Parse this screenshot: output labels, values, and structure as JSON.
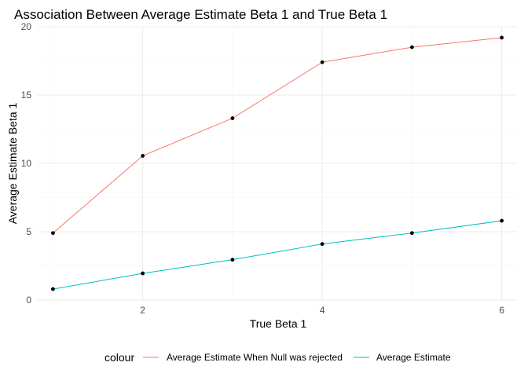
{
  "chart_data": {
    "type": "line",
    "title": "Association Between Average Estimate Beta 1 and True Beta 1",
    "xlabel": "True Beta 1",
    "ylabel": "Average Estimate Beta 1",
    "x": [
      1,
      2,
      3,
      4,
      5,
      6
    ],
    "xlim": [
      0.83,
      6.17
    ],
    "ylim": [
      0,
      20
    ],
    "x_ticks": [
      2,
      4,
      6
    ],
    "y_ticks": [
      0,
      5,
      10,
      15,
      20
    ],
    "grid": true,
    "legend": {
      "title": "colour",
      "position": "bottom"
    },
    "series": [
      {
        "name": "Average Estimate When Null was rejected",
        "color": "#F8766D",
        "values": [
          4.9,
          10.55,
          13.3,
          17.4,
          18.5,
          19.2
        ]
      },
      {
        "name": "Average Estimate",
        "color": "#00BFC4",
        "values": [
          0.8,
          1.95,
          2.95,
          4.1,
          4.9,
          5.8
        ]
      }
    ],
    "point_color": "#000000"
  }
}
